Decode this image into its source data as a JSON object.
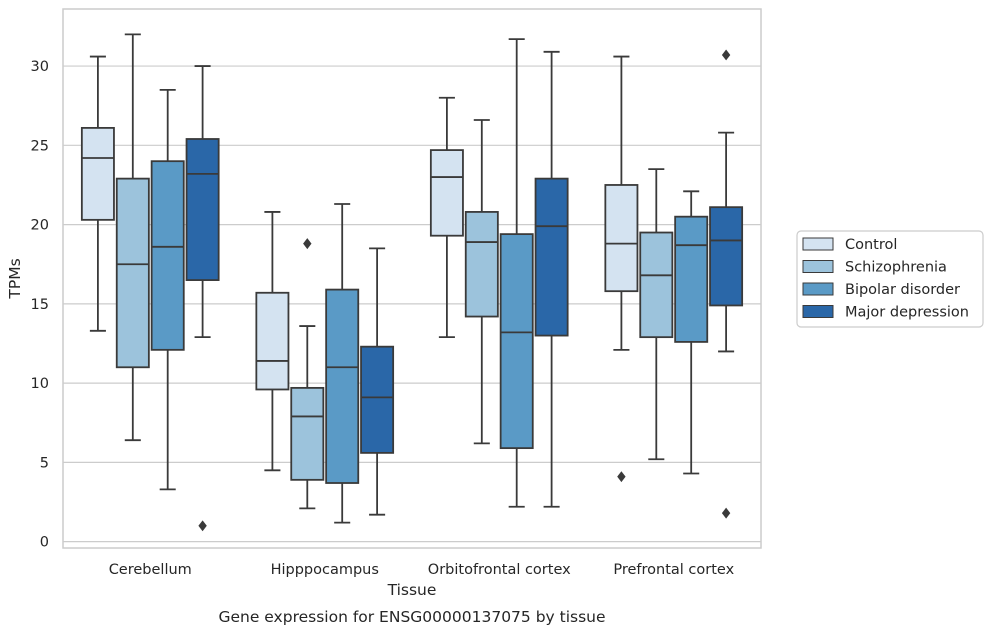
{
  "chart_data": {
    "type": "box",
    "title": "",
    "caption": "Gene expression for ENSG00000137075 by tissue",
    "xlabel": "Tissue",
    "ylabel": "TPMs",
    "ylim": [
      -0.4,
      33.6
    ],
    "yticks": [
      0,
      5,
      10,
      15,
      20,
      25,
      30
    ],
    "grid": "horizontal",
    "legend_position": "right",
    "categories": [
      "Cerebellum",
      "Hipppocampus",
      "Orbitofrontal cortex",
      "Prefrontal cortex"
    ],
    "series": [
      {
        "name": "Control",
        "color": "#d4e3f1",
        "boxes": [
          {
            "whislo": 13.3,
            "q1": 20.3,
            "med": 24.2,
            "q3": 26.1,
            "whishi": 30.6,
            "fliers": []
          },
          {
            "whislo": 4.5,
            "q1": 9.6,
            "med": 11.4,
            "q3": 15.7,
            "whishi": 20.8,
            "fliers": []
          },
          {
            "whislo": 12.9,
            "q1": 19.3,
            "med": 23.0,
            "q3": 24.7,
            "whishi": 28.0,
            "fliers": []
          },
          {
            "whislo": 12.1,
            "q1": 15.8,
            "med": 18.8,
            "q3": 22.5,
            "whishi": 30.6,
            "fliers": [
              4.1
            ]
          }
        ]
      },
      {
        "name": "Schizophrenia",
        "color": "#9cc3dc",
        "boxes": [
          {
            "whislo": 6.4,
            "q1": 11.0,
            "med": 17.5,
            "q3": 22.9,
            "whishi": 32.0,
            "fliers": []
          },
          {
            "whislo": 2.1,
            "q1": 3.9,
            "med": 7.9,
            "q3": 9.7,
            "whishi": 13.6,
            "fliers": [
              18.8
            ]
          },
          {
            "whislo": 6.2,
            "q1": 14.2,
            "med": 18.9,
            "q3": 20.8,
            "whishi": 26.6,
            "fliers": []
          },
          {
            "whislo": 5.2,
            "q1": 12.9,
            "med": 16.8,
            "q3": 19.5,
            "whishi": 23.5,
            "fliers": []
          }
        ]
      },
      {
        "name": "Bipolar disorder",
        "color": "#5a9ac6",
        "boxes": [
          {
            "whislo": 3.3,
            "q1": 12.1,
            "med": 18.6,
            "q3": 24.0,
            "whishi": 28.5,
            "fliers": []
          },
          {
            "whislo": 1.2,
            "q1": 3.7,
            "med": 11.0,
            "q3": 15.9,
            "whishi": 21.3,
            "fliers": []
          },
          {
            "whislo": 2.2,
            "q1": 5.9,
            "med": 13.2,
            "q3": 19.4,
            "whishi": 31.7,
            "fliers": []
          },
          {
            "whislo": 4.3,
            "q1": 12.6,
            "med": 18.7,
            "q3": 20.5,
            "whishi": 22.1,
            "fliers": []
          }
        ]
      },
      {
        "name": "Major depression",
        "color": "#2a67a8",
        "boxes": [
          {
            "whislo": 12.9,
            "q1": 16.5,
            "med": 23.2,
            "q3": 25.4,
            "whishi": 30.0,
            "fliers": [
              1.0
            ]
          },
          {
            "whislo": 1.7,
            "q1": 5.6,
            "med": 9.1,
            "q3": 12.3,
            "whishi": 18.5,
            "fliers": []
          },
          {
            "whislo": 2.2,
            "q1": 13.0,
            "med": 19.9,
            "q3": 22.9,
            "whishi": 30.9,
            "fliers": []
          },
          {
            "whislo": 12.0,
            "q1": 14.9,
            "med": 19.0,
            "q3": 21.1,
            "whishi": 25.8,
            "fliers": [
              1.8,
              30.7
            ]
          }
        ]
      }
    ]
  }
}
